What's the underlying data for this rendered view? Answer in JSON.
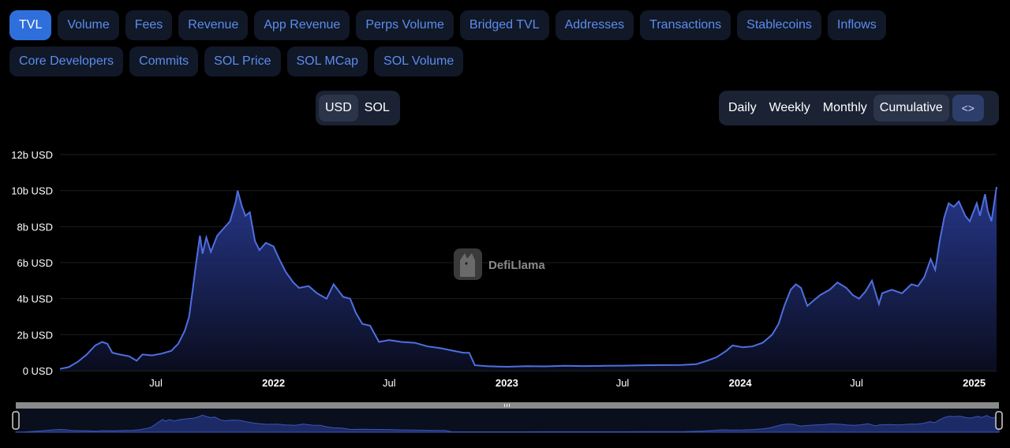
{
  "metric_tabs": {
    "row1": [
      "TVL",
      "Volume",
      "Fees",
      "Revenue",
      "App Revenue",
      "Perps Volume",
      "Bridged TVL",
      "Addresses",
      "Transactions",
      "Stablecoins",
      "Inflows"
    ],
    "row2": [
      "Core Developers",
      "Commits",
      "SOL Price",
      "SOL MCap",
      "SOL Volume"
    ],
    "active": "TVL"
  },
  "currency_toggle": {
    "options": [
      "USD",
      "SOL"
    ],
    "selected": "USD"
  },
  "period_toggle": {
    "options": [
      "Daily",
      "Weekly",
      "Monthly",
      "Cumulative"
    ],
    "selected": "Cumulative",
    "embed_icon": "code-icon",
    "embed_glyph": "<>"
  },
  "watermark": {
    "text": "DefiLlama",
    "icon": "llama-logo-icon"
  },
  "colors": {
    "line": "#4f6fe0",
    "area_top": "#2c3f9e",
    "grid": "#1e1e1e",
    "tab_active": "#2f6fdb",
    "tab_text": "#5b8def"
  },
  "chart_data": {
    "type": "area",
    "title": "",
    "xlabel": "",
    "ylabel": "",
    "y_unit": "USD",
    "ylim": [
      0,
      12
    ],
    "y_ticks": [
      "0 USD",
      "2b USD",
      "4b USD",
      "6b USD",
      "8b USD",
      "10b USD",
      "12b USD"
    ],
    "y_tick_values": [
      0,
      2,
      4,
      6,
      8,
      10,
      12
    ],
    "xlim": [
      "2021-02-01",
      "2025-02-05"
    ],
    "x_ticks": [
      {
        "label": "Jul",
        "date": "2021-07-01",
        "bold": false
      },
      {
        "label": "2022",
        "date": "2022-01-01",
        "bold": true
      },
      {
        "label": "Jul",
        "date": "2022-07-01",
        "bold": false
      },
      {
        "label": "2023",
        "date": "2023-01-01",
        "bold": true
      },
      {
        "label": "Jul",
        "date": "2023-07-01",
        "bold": false
      },
      {
        "label": "2024",
        "date": "2024-01-01",
        "bold": true
      },
      {
        "label": "Jul",
        "date": "2024-07-01",
        "bold": false
      },
      {
        "label": "2025",
        "date": "2025-01-01",
        "bold": true
      }
    ],
    "grid": true,
    "legend": "none",
    "series": [
      {
        "name": "",
        "values_unit": "billions USD",
        "points": [
          [
            "2021-02-01",
            0.1
          ],
          [
            "2021-02-15",
            0.2
          ],
          [
            "2021-03-01",
            0.5
          ],
          [
            "2021-03-15",
            0.9
          ],
          [
            "2021-03-28",
            1.4
          ],
          [
            "2021-04-08",
            1.6
          ],
          [
            "2021-04-16",
            1.5
          ],
          [
            "2021-04-24",
            1.0
          ],
          [
            "2021-05-05",
            0.9
          ],
          [
            "2021-05-20",
            0.8
          ],
          [
            "2021-06-01",
            0.55
          ],
          [
            "2021-06-10",
            0.9
          ],
          [
            "2021-06-25",
            0.85
          ],
          [
            "2021-07-10",
            0.95
          ],
          [
            "2021-07-25",
            1.1
          ],
          [
            "2021-08-05",
            1.5
          ],
          [
            "2021-08-15",
            2.2
          ],
          [
            "2021-08-22",
            3.0
          ],
          [
            "2021-08-28",
            4.6
          ],
          [
            "2021-09-02",
            6.0
          ],
          [
            "2021-09-08",
            7.5
          ],
          [
            "2021-09-12",
            6.5
          ],
          [
            "2021-09-18",
            7.4
          ],
          [
            "2021-09-25",
            6.6
          ],
          [
            "2021-10-05",
            7.5
          ],
          [
            "2021-10-15",
            7.9
          ],
          [
            "2021-10-25",
            8.3
          ],
          [
            "2021-11-03",
            9.4
          ],
          [
            "2021-11-06",
            10.0
          ],
          [
            "2021-11-12",
            9.2
          ],
          [
            "2021-11-18",
            8.6
          ],
          [
            "2021-11-25",
            8.8
          ],
          [
            "2021-12-03",
            7.2
          ],
          [
            "2021-12-10",
            6.7
          ],
          [
            "2021-12-20",
            7.1
          ],
          [
            "2022-01-01",
            6.9
          ],
          [
            "2022-01-10",
            6.2
          ],
          [
            "2022-01-20",
            5.5
          ],
          [
            "2022-02-01",
            4.9
          ],
          [
            "2022-02-10",
            4.6
          ],
          [
            "2022-02-25",
            4.7
          ],
          [
            "2022-03-10",
            4.3
          ],
          [
            "2022-03-25",
            4.0
          ],
          [
            "2022-04-05",
            4.8
          ],
          [
            "2022-04-20",
            4.1
          ],
          [
            "2022-05-01",
            4.0
          ],
          [
            "2022-05-10",
            3.2
          ],
          [
            "2022-05-20",
            2.6
          ],
          [
            "2022-06-01",
            2.5
          ],
          [
            "2022-06-15",
            1.6
          ],
          [
            "2022-07-01",
            1.7
          ],
          [
            "2022-07-20",
            1.6
          ],
          [
            "2022-08-10",
            1.55
          ],
          [
            "2022-08-30",
            1.35
          ],
          [
            "2022-09-20",
            1.25
          ],
          [
            "2022-10-10",
            1.1
          ],
          [
            "2022-10-25",
            1.0
          ],
          [
            "2022-11-03",
            1.0
          ],
          [
            "2022-11-12",
            0.3
          ],
          [
            "2022-12-01",
            0.25
          ],
          [
            "2023-01-01",
            0.22
          ],
          [
            "2023-02-01",
            0.25
          ],
          [
            "2023-03-01",
            0.24
          ],
          [
            "2023-04-01",
            0.27
          ],
          [
            "2023-05-01",
            0.26
          ],
          [
            "2023-06-01",
            0.27
          ],
          [
            "2023-07-01",
            0.28
          ],
          [
            "2023-08-01",
            0.3
          ],
          [
            "2023-09-01",
            0.31
          ],
          [
            "2023-10-01",
            0.32
          ],
          [
            "2023-10-25",
            0.37
          ],
          [
            "2023-11-10",
            0.55
          ],
          [
            "2023-11-25",
            0.75
          ],
          [
            "2023-12-10",
            1.1
          ],
          [
            "2023-12-20",
            1.4
          ],
          [
            "2024-01-05",
            1.3
          ],
          [
            "2024-01-20",
            1.35
          ],
          [
            "2024-02-05",
            1.55
          ],
          [
            "2024-02-20",
            2.0
          ],
          [
            "2024-03-01",
            2.6
          ],
          [
            "2024-03-10",
            3.6
          ],
          [
            "2024-03-20",
            4.5
          ],
          [
            "2024-03-28",
            4.8
          ],
          [
            "2024-04-05",
            4.6
          ],
          [
            "2024-04-15",
            3.6
          ],
          [
            "2024-04-25",
            3.9
          ],
          [
            "2024-05-05",
            4.2
          ],
          [
            "2024-05-20",
            4.5
          ],
          [
            "2024-06-01",
            4.9
          ],
          [
            "2024-06-15",
            4.6
          ],
          [
            "2024-06-25",
            4.2
          ],
          [
            "2024-07-05",
            4.0
          ],
          [
            "2024-07-15",
            4.4
          ],
          [
            "2024-07-25",
            5.0
          ],
          [
            "2024-08-05",
            3.7
          ],
          [
            "2024-08-10",
            4.3
          ],
          [
            "2024-08-25",
            4.5
          ],
          [
            "2024-09-10",
            4.3
          ],
          [
            "2024-09-25",
            4.8
          ],
          [
            "2024-10-05",
            4.7
          ],
          [
            "2024-10-15",
            5.2
          ],
          [
            "2024-10-25",
            6.2
          ],
          [
            "2024-11-01",
            5.6
          ],
          [
            "2024-11-08",
            7.2
          ],
          [
            "2024-11-15",
            8.5
          ],
          [
            "2024-11-22",
            9.3
          ],
          [
            "2024-11-30",
            9.1
          ],
          [
            "2024-12-08",
            9.4
          ],
          [
            "2024-12-18",
            8.6
          ],
          [
            "2024-12-25",
            8.3
          ],
          [
            "2025-01-05",
            9.3
          ],
          [
            "2025-01-10",
            8.6
          ],
          [
            "2025-01-18",
            9.8
          ],
          [
            "2025-01-22",
            8.9
          ],
          [
            "2025-01-28",
            8.3
          ],
          [
            "2025-02-05",
            10.2
          ]
        ]
      }
    ]
  }
}
